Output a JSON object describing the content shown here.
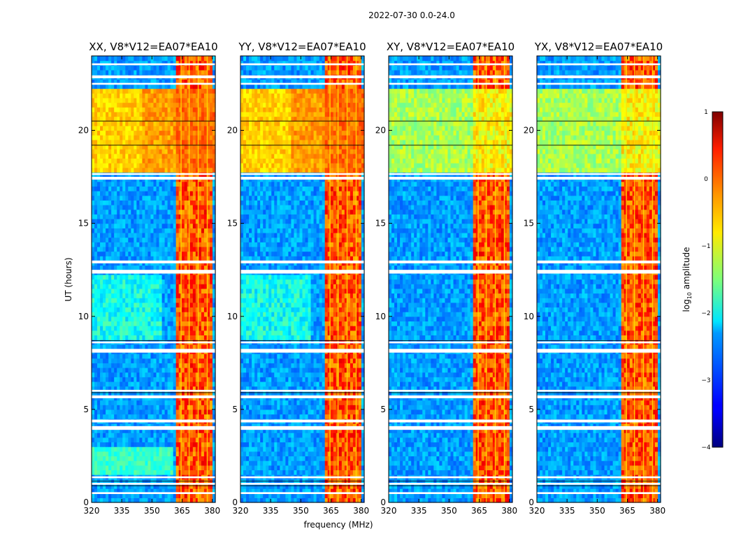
{
  "figure": {
    "suptitle": "2022-07-30 0.0-24.0"
  },
  "chart_data": {
    "type": "heatmap",
    "xlabel": "frequency (MHz)",
    "ylabel": "UT (hours)",
    "xlim": [
      320,
      381.5
    ],
    "ylim": [
      0,
      24
    ],
    "xticks": [
      "320",
      "335",
      "350",
      "365",
      "380"
    ],
    "yticks": [
      "0",
      "5",
      "10",
      "15",
      "20"
    ],
    "panels": [
      {
        "title": "XX, V8*V12=EA07*EA10",
        "polarization": "XX"
      },
      {
        "title": "YY, V8*V12=EA07*EA10",
        "polarization": "YY"
      },
      {
        "title": "XY, V8*V12=EA07*EA10",
        "polarization": "XY"
      },
      {
        "title": "YX, V8*V12=EA07*EA10",
        "polarization": "YX"
      }
    ],
    "colorbar": {
      "label": "log10 amplitude",
      "label_base": "log",
      "label_sub": "10",
      "label_rest": " amplitude",
      "range": [
        -4,
        1
      ],
      "ticks": [
        "1",
        "0",
        "−1",
        "−2",
        "−3",
        "−4"
      ],
      "colormap": "jet"
    },
    "rfi_band_mhz": [
      362,
      381
    ],
    "rfi_channels_mhz": [
      364.5,
      368.5,
      373.0,
      377.5
    ],
    "blank_intervals_ut": [
      [
        0.45,
        0.55
      ],
      [
        0.95,
        1.05
      ],
      [
        1.3,
        1.4
      ],
      [
        3.9,
        4.1
      ],
      [
        4.3,
        4.45
      ],
      [
        5.6,
        5.75
      ],
      [
        5.95,
        6.05
      ],
      [
        8.05,
        8.25
      ],
      [
        8.55,
        8.65
      ],
      [
        12.3,
        12.5
      ],
      [
        12.85,
        13.0
      ],
      [
        17.35,
        17.5
      ],
      [
        17.6,
        17.7
      ],
      [
        22.45,
        22.55
      ],
      [
        22.8,
        22.95
      ],
      [
        23.5,
        23.6
      ]
    ],
    "bright_interval_ut": [
      17.7,
      22.3
    ]
  }
}
